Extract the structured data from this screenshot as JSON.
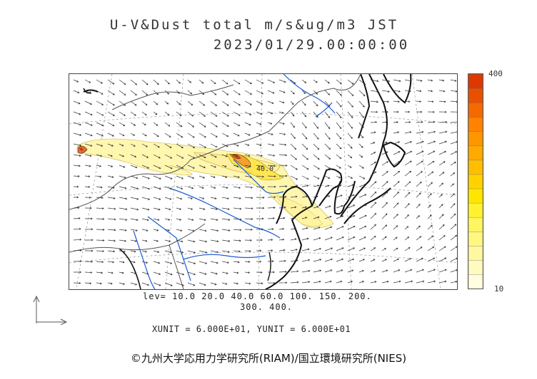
{
  "title": {
    "line1": "U-V&Dust total m/s&ug/m3 JST",
    "line2": "2023/01/29.00:00:00"
  },
  "colorbar": {
    "max_label": "400",
    "min_label": "10",
    "colors": [
      "#fffde0",
      "#fffbc0",
      "#fff8a0",
      "#fff780",
      "#fff560",
      "#fff230",
      "#ffe600",
      "#ffd200",
      "#ffbe00",
      "#ffaa00",
      "#ff9600",
      "#ff8200",
      "#f46a00",
      "#e85000",
      "#dc3800"
    ]
  },
  "legend": {
    "levels_line1": "lev= 10.0 20.0 40.0 60.0 100. 150. 200.",
    "levels_line2": "300. 400."
  },
  "units": "XUNIT = 6.000E+01, YUNIT = 6.000E+01",
  "credit": "©九州大学応用力学研究所(RIAM)/国立環境研究所(NIES)",
  "map": {
    "contour_label": "40.0",
    "colors": {
      "coast": "#111111",
      "river": "#1a5bd8",
      "border": "#555555",
      "dust_light": "#fff7b0",
      "dust_mid": "#ffe650",
      "dust_core": "#e0502a"
    }
  },
  "icons": [
    "axis-arrows-icon"
  ]
}
